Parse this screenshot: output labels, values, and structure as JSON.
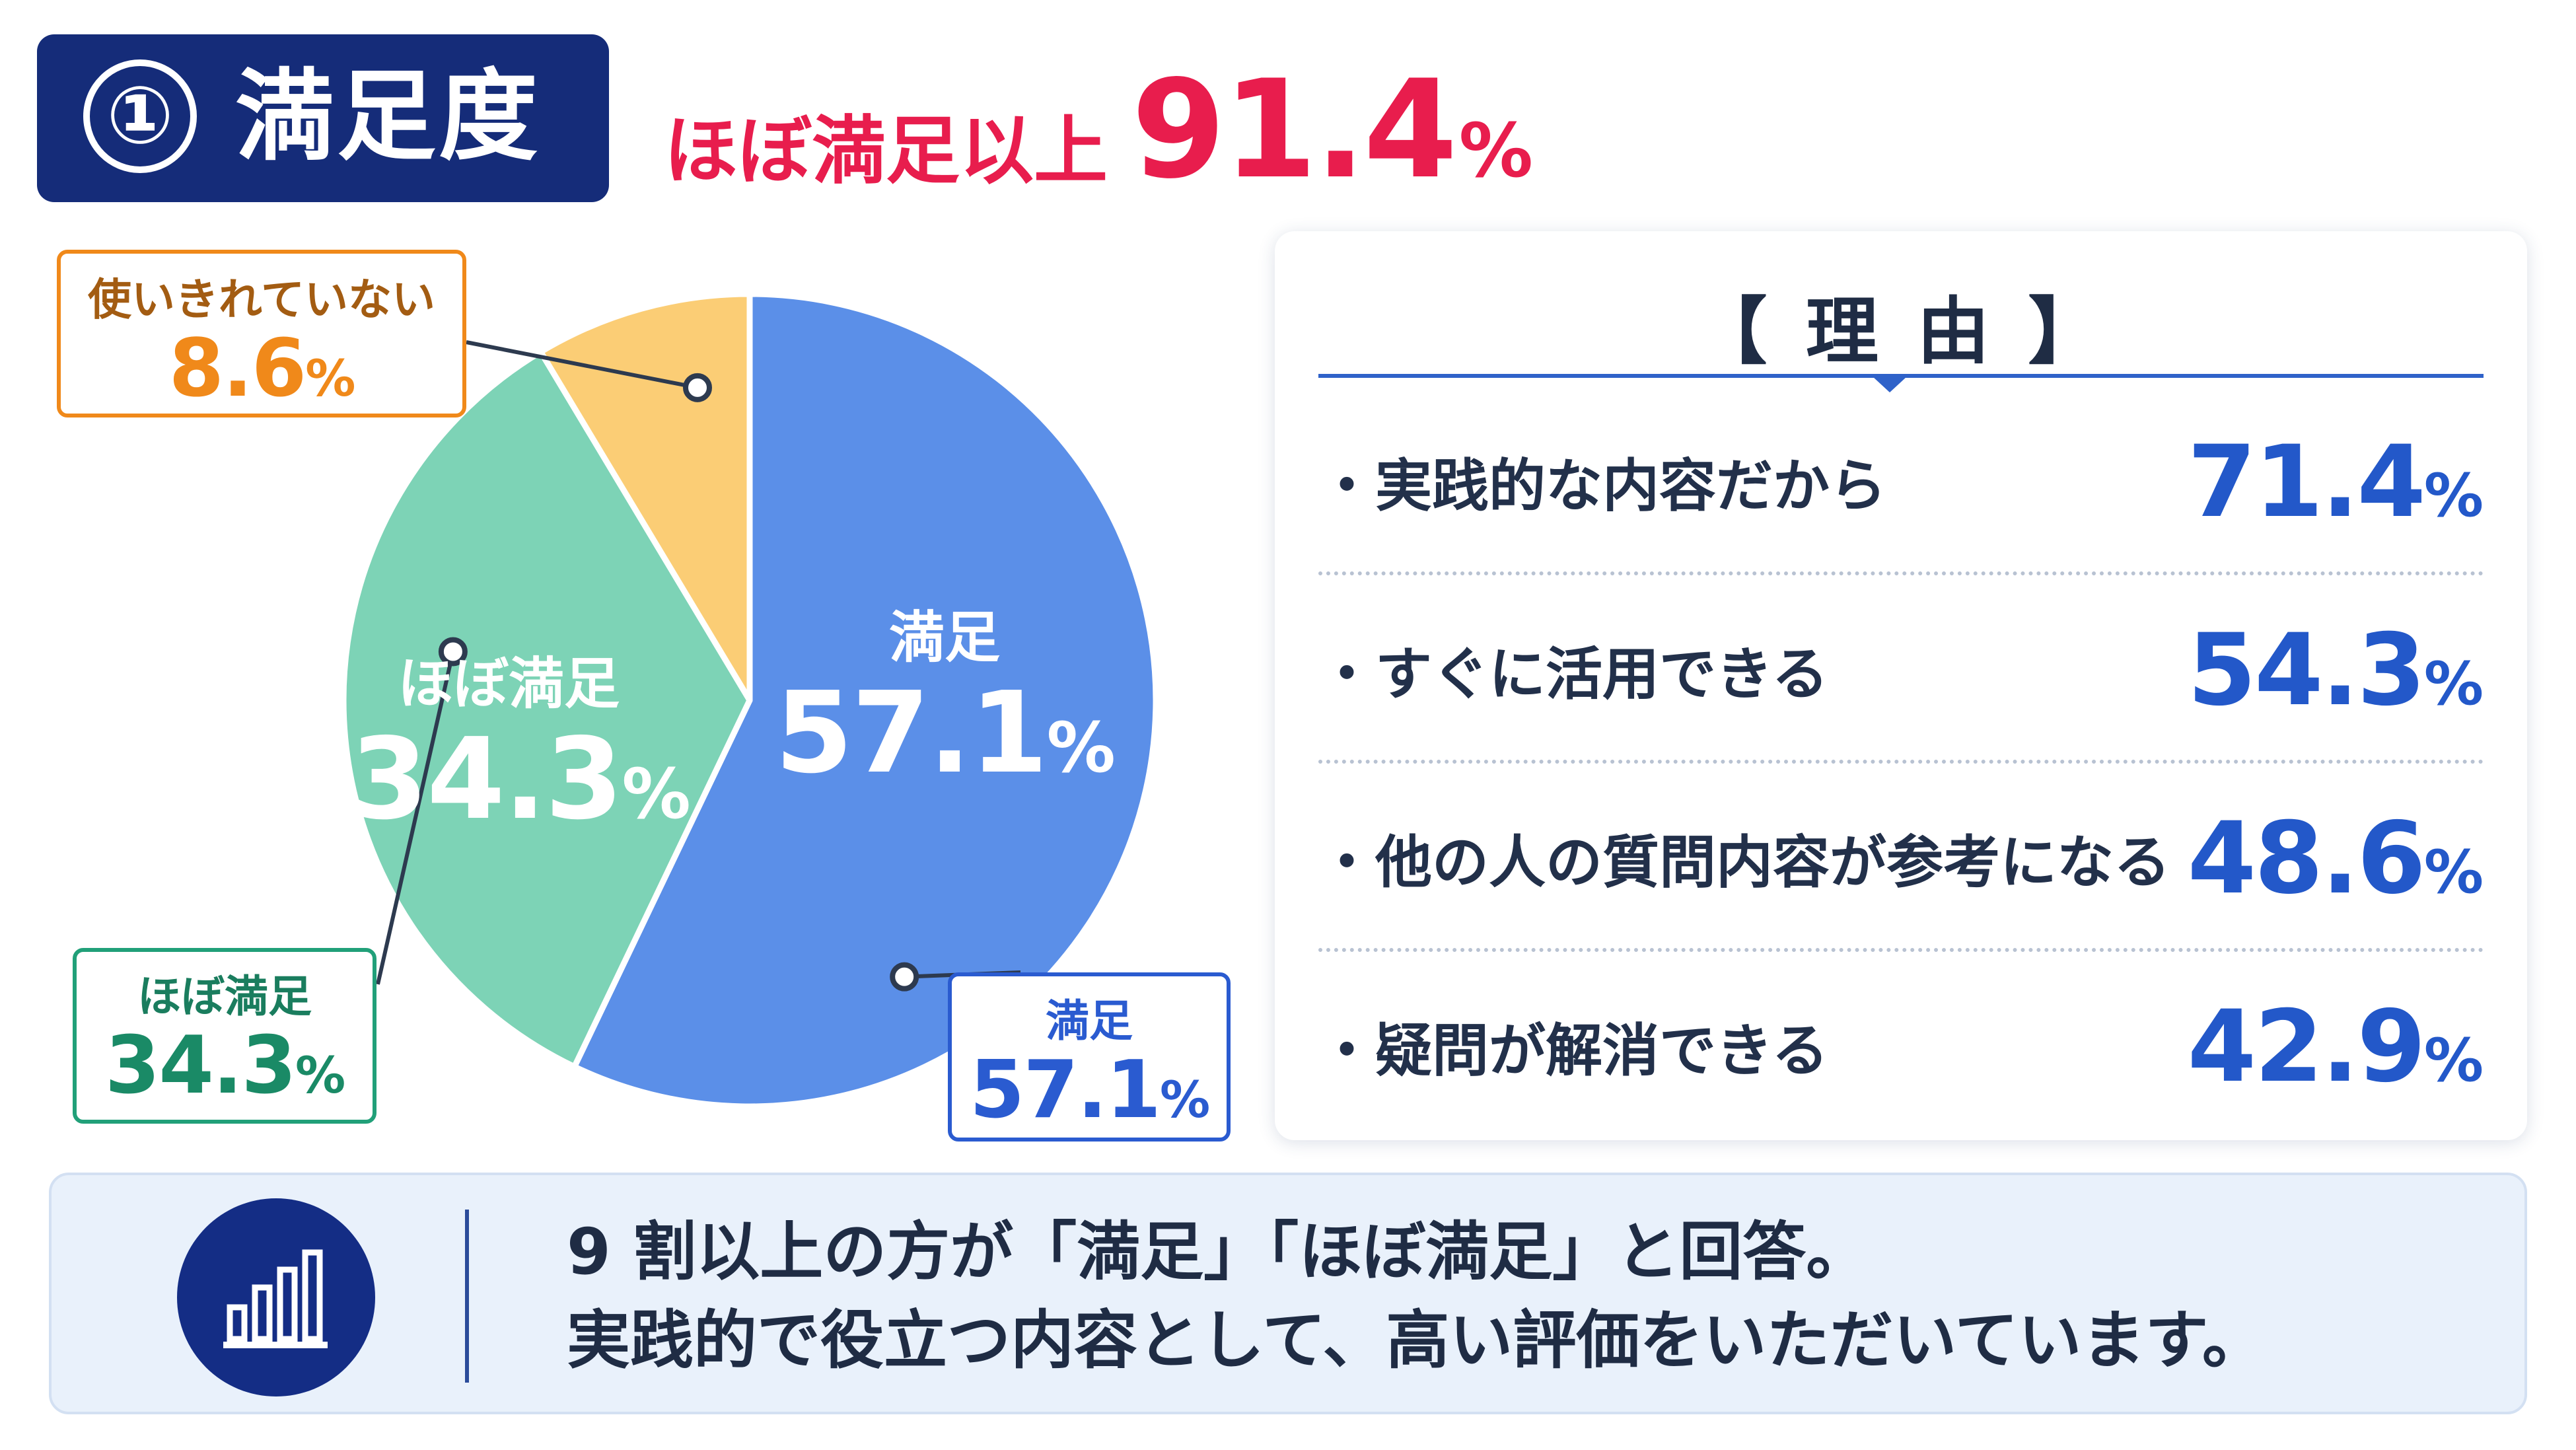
{
  "header": {
    "number": "①",
    "title": "満足度",
    "headline_label": "ほぼ満足以上",
    "headline_value": "91.4",
    "headline_unit": "%"
  },
  "chart_data": {
    "type": "pie",
    "categories": [
      "満足",
      "ほぼ満足",
      "使いきれていない"
    ],
    "values": [
      57.1,
      34.3,
      8.6
    ],
    "unit": "%",
    "colors": [
      "#5b8fe8",
      "#7dd3b6",
      "#fbcd75"
    ],
    "callout_colors": [
      "#2a5bd0",
      "#21a079",
      "#f0891a"
    ],
    "slices": [
      {
        "label": "満足",
        "value": "57.1",
        "unit": "%"
      },
      {
        "label": "ほぼ満足",
        "value": "34.3",
        "unit": "%"
      },
      {
        "label": "使いきれていない",
        "value": "8.6",
        "unit": "%"
      }
    ]
  },
  "reasons": {
    "title": "【 理 由 】",
    "items": [
      {
        "label": "・実践的な内容だから",
        "value": "71.4",
        "unit": "%"
      },
      {
        "label": "・すぐに活用できる",
        "value": "54.3",
        "unit": "%"
      },
      {
        "label": "・他の人の質問内容が参考になる",
        "value": "48.6",
        "unit": "%"
      },
      {
        "label": "・疑問が解消できる",
        "value": "42.9",
        "unit": "%"
      }
    ]
  },
  "summary": {
    "icon": "bar-chart-icon",
    "line1": "9 割以上の方が「満足」「ほぼ満足」と回答。",
    "line2": "実践的で役立つ内容として、高い評価をいただいています。"
  }
}
